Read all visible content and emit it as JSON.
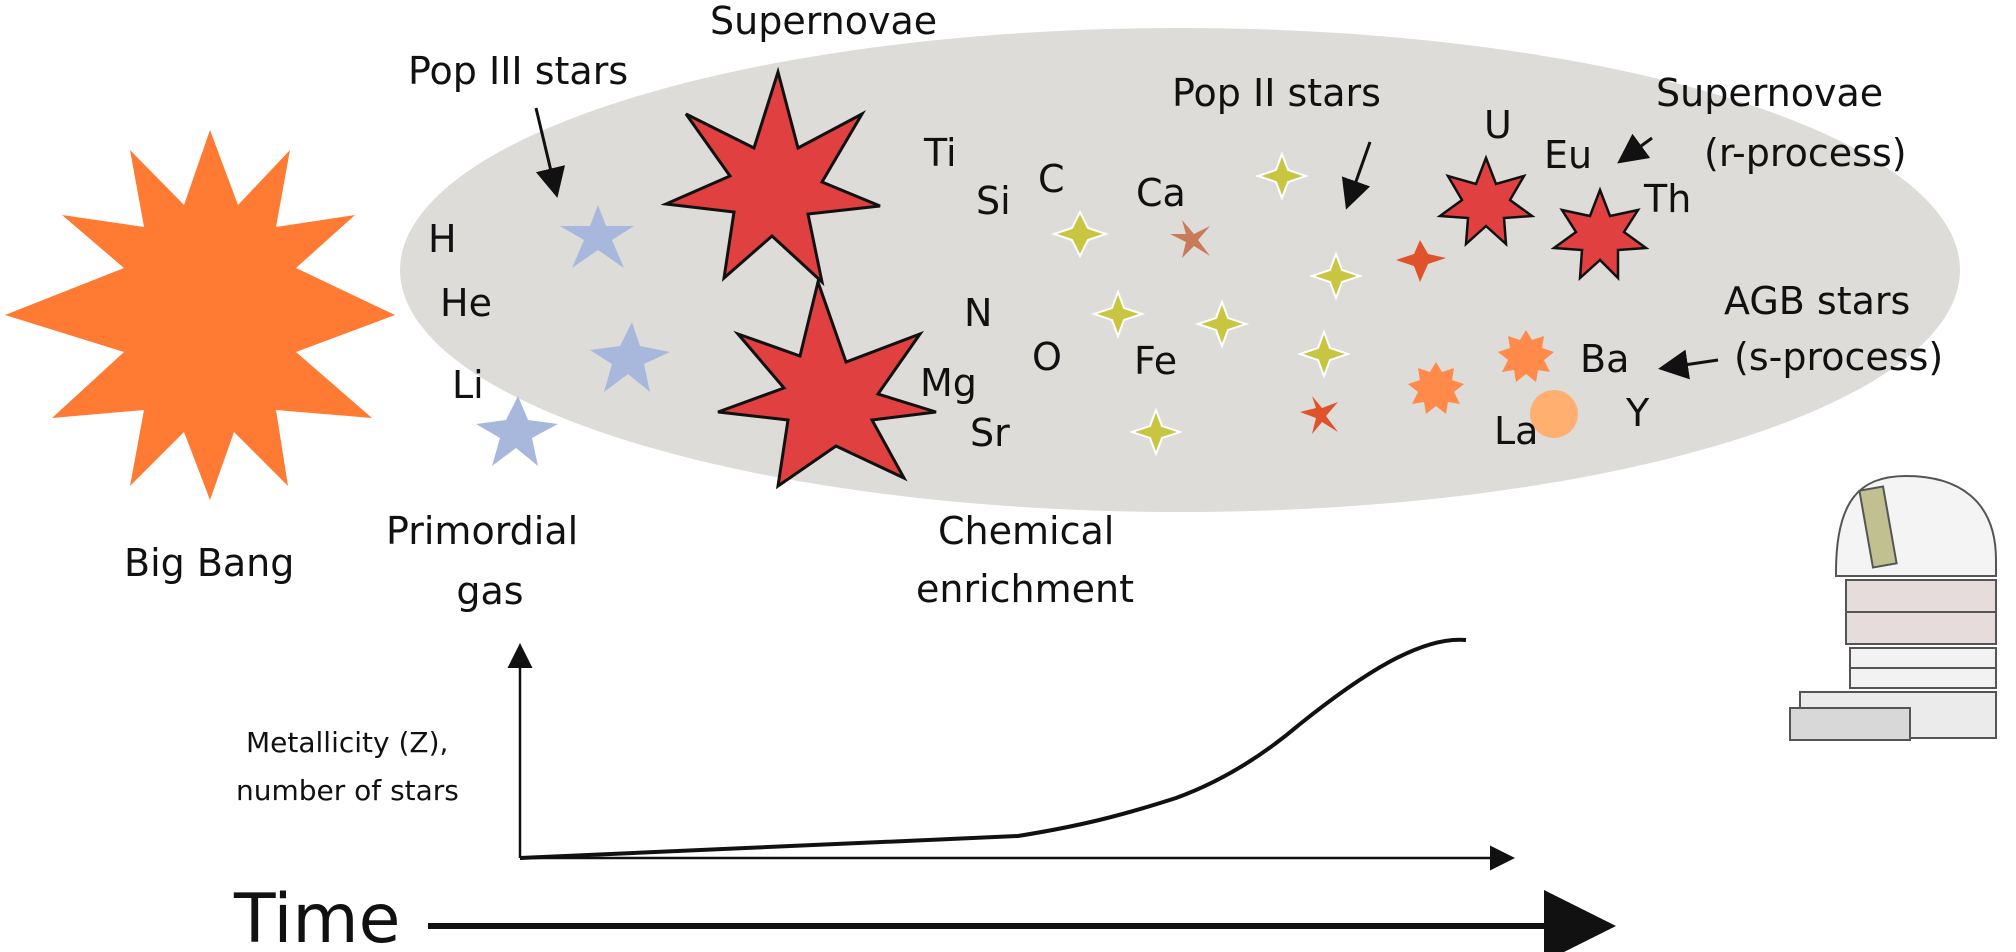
{
  "labels": {
    "big_bang": "Big Bang",
    "primordial_gas_line1": "Primordial",
    "primordial_gas_line2": "gas",
    "supernovae_top": "Supernovae",
    "pop3": "Pop III stars",
    "pop2": "Pop II stars",
    "supernovae_r_line1": "Supernovae",
    "supernovae_r_line2": "(r-process)",
    "agb_line1": "AGB stars",
    "agb_line2": "(s-process)",
    "chem_line1": "Chemical",
    "chem_line2": "enrichment",
    "yaxis_line1": "Metallicity (Z),",
    "yaxis_line2": "number of stars",
    "time": "Time"
  },
  "elements": {
    "H": "H",
    "He": "He",
    "Li": "Li",
    "Ti": "Ti",
    "Si": "Si",
    "C": "C",
    "Ca": "Ca",
    "N": "N",
    "O": "O",
    "Mg": "Mg",
    "Sr": "Sr",
    "Fe": "Fe",
    "U": "U",
    "Eu": "Eu",
    "Th": "Th",
    "Ba": "Ba",
    "Y": "Y",
    "La": "La"
  },
  "colors": {
    "big_bang": "#ff7a33",
    "cloud": "#dedcd9",
    "pop3_star": "#a8b8dc",
    "supernova_star": "#e04040",
    "pop2_star": "#c8c640",
    "red_cross": "#e0522a",
    "brown_cross": "#c87a5a",
    "agb_star": "#ff8a4a",
    "agb_star_light": "#ffb070"
  },
  "icons": {
    "observatory": "observatory-icon"
  }
}
